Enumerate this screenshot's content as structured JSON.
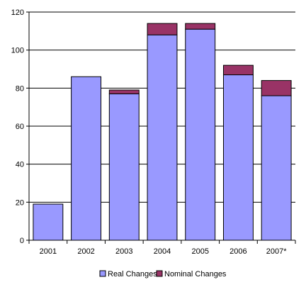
{
  "chart_data": {
    "type": "bar",
    "stacked": true,
    "title": "",
    "xlabel": "",
    "ylabel": "",
    "categories": [
      "2001",
      "2002",
      "2003",
      "2004",
      "2005",
      "2006",
      "2007*"
    ],
    "series": [
      {
        "name": "Real Changes",
        "values": [
          19,
          86,
          77,
          108,
          111,
          87,
          76
        ],
        "color": "#9999ff"
      },
      {
        "name": "Nominal Changes",
        "values": [
          0,
          0,
          2,
          6,
          3,
          5,
          8
        ],
        "color": "#993366"
      }
    ],
    "ylim": [
      0,
      120
    ],
    "yticks": [
      0,
      20,
      40,
      60,
      80,
      100,
      120
    ],
    "grid": true,
    "legend_position": "bottom"
  }
}
